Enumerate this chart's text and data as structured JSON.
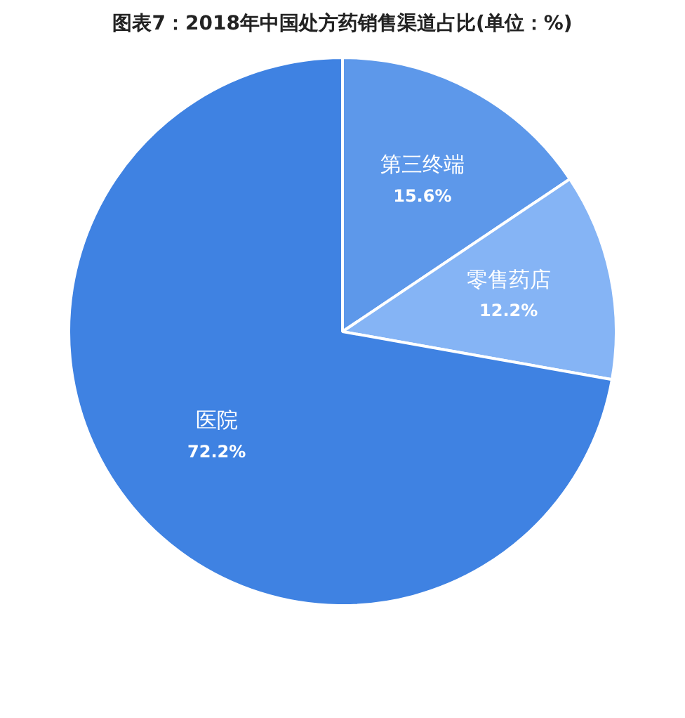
{
  "chart_data": {
    "type": "pie",
    "title": "图表7：2018年中国处方药销售渠道占比(单位：%)",
    "categories": [
      "第三终端",
      "零售药店",
      "医院"
    ],
    "values": [
      15.6,
      12.2,
      72.2
    ],
    "colors": [
      "#5d98ea",
      "#85b4f5",
      "#3f82e2"
    ],
    "value_labels": [
      "15.6%",
      "12.2%",
      "72.2%"
    ],
    "legend": false
  }
}
